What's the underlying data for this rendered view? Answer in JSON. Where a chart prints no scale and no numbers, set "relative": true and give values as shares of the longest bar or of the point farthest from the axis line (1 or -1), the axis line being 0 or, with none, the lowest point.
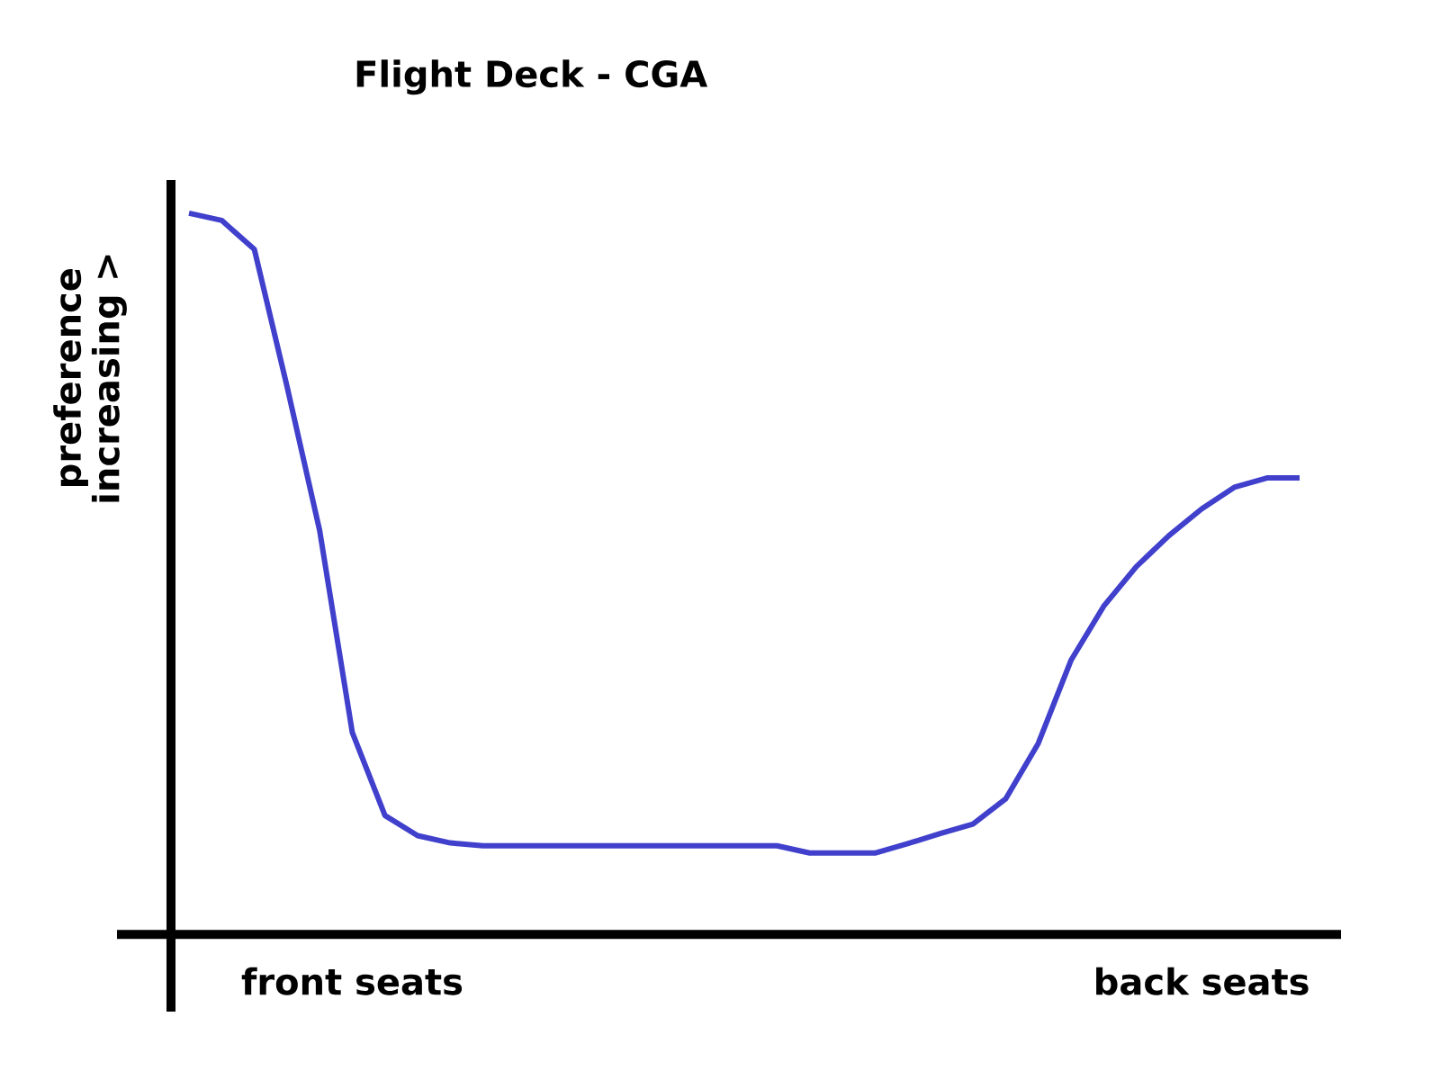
{
  "chart_data": {
    "type": "line",
    "title": "Flight Deck - CGA",
    "ylabel": "preference increasing >",
    "relative": true,
    "categories": [
      null,
      null,
      null,
      null,
      null,
      "front seats",
      null,
      null,
      null,
      null,
      null,
      null,
      null,
      null,
      null,
      null,
      null,
      null,
      null,
      null,
      null,
      null,
      null,
      null,
      null,
      null,
      null,
      null,
      null,
      null,
      null,
      "back seats",
      null,
      null,
      null
    ],
    "values": [
      1.0,
      0.99,
      0.95,
      0.76,
      0.56,
      0.28,
      0.165,
      0.137,
      0.127,
      0.123,
      0.123,
      0.123,
      0.123,
      0.123,
      0.123,
      0.123,
      0.123,
      0.123,
      0.123,
      0.113,
      0.113,
      0.113,
      0.126,
      0.14,
      0.153,
      0.188,
      0.265,
      0.38,
      0.455,
      0.51,
      0.553,
      0.59,
      0.62,
      0.633,
      0.633
    ],
    "color": "#4040cc",
    "marker": "none",
    "line_style": "solid"
  }
}
